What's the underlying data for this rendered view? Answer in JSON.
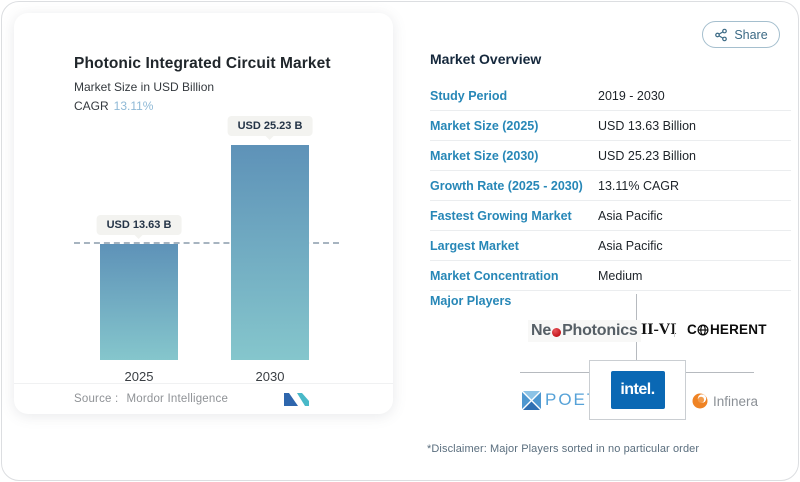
{
  "header": {
    "share_label": "Share"
  },
  "chart_card": {
    "title": "Photonic Integrated Circuit Market",
    "subtitle": "Market Size in USD Billion",
    "cagr_label": "CAGR",
    "cagr_value": "13.11%",
    "source_label": "Source :",
    "source_name": "Mordor Intelligence"
  },
  "chart_data": {
    "type": "bar",
    "categories": [
      "2025",
      "2030"
    ],
    "values": [
      13.63,
      25.23
    ],
    "bar_value_labels": [
      "USD 13.63 B",
      "USD 25.23 B"
    ],
    "title": "Photonic Integrated Circuit Market",
    "ylabel": "Market Size in USD Billion",
    "ylim": [
      0,
      25.23
    ],
    "reference_line_value": 13.63,
    "grid": false,
    "legend": false,
    "bar_gradient_top": "#5e92b8",
    "bar_gradient_bottom": "#85c6cc"
  },
  "overview": {
    "heading": "Market Overview",
    "rows": [
      {
        "label": "Study Period",
        "value": "2019 - 2030"
      },
      {
        "label": "Market Size (2025)",
        "value": "USD 13.63 Billion"
      },
      {
        "label": "Market Size (2030)",
        "value": "USD 25.23 Billion"
      },
      {
        "label": "Growth Rate (2025 - 2030)",
        "value": "13.11% CAGR"
      },
      {
        "label": "Fastest Growing Market",
        "value": "Asia Pacific"
      },
      {
        "label": "Largest Market",
        "value": "Asia Pacific"
      },
      {
        "label": "Market Concentration",
        "value": "Medium"
      }
    ],
    "major_players_label": "Major Players",
    "players": {
      "neophotonics_prefix": "Ne",
      "neophotonics_suffix": "Photonics",
      "iivi": "II-VI",
      "coherent_prefix": "C",
      "coherent_suffix": "HERENT",
      "poet": "POET",
      "intel": "intel.",
      "infinera": "Infinera"
    },
    "disclaimer": "*Disclaimer: Major Players sorted in no particular order"
  },
  "colors": {
    "accent_blue": "#2787b7",
    "heading_navy": "#15283c",
    "cagr_value_blue": "#8fb9d6",
    "bar_top": "#5e92b8",
    "bar_bottom": "#85c6cc",
    "intel_blue": "#0a68b4",
    "infinera_orange": "#ef8324",
    "neophotonics_red": "#c4161c",
    "poet_blue": "#56a2d8"
  }
}
